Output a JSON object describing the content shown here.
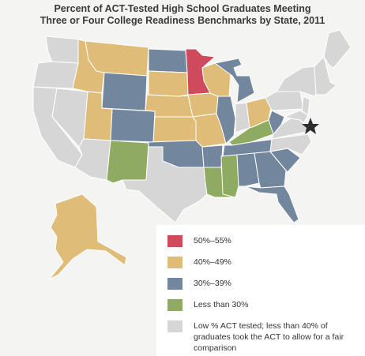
{
  "title": {
    "line1": "Percent of ACT-Tested High School Graduates Meeting",
    "line2": "Three or Four College Readiness Benchmarks by State, 2011"
  },
  "colors": {
    "c50_55": "#cf4a5a",
    "c40_49": "#dfbd79",
    "c30_39": "#72879d",
    "under30": "#8faa61",
    "low": "#d6d6d6",
    "border": "#ffffff"
  },
  "legend": [
    {
      "key": "c50_55",
      "label": "50%–55%"
    },
    {
      "key": "c40_49",
      "label": "40%–49%"
    },
    {
      "key": "c30_39",
      "label": "30%–39%"
    },
    {
      "key": "under30",
      "label": "Less than 30%"
    },
    {
      "key": "low",
      "label": "Low % ACT tested; less than 40% of graduates took the ACT to allow for a fair comparison"
    }
  ],
  "marker": "star-icon",
  "states": {
    "MN": "c50_55",
    "MT": "c40_49",
    "ID": "c40_49",
    "UT": "c40_49",
    "NE": "c40_49",
    "SD": "c40_49",
    "IA": "c40_49",
    "WI": "c40_49",
    "KS": "c40_49",
    "MO": "c40_49",
    "OH": "c40_49",
    "AK": "c40_49",
    "ND": "c30_39",
    "WY": "c30_39",
    "CO": "c30_39",
    "OK": "c30_39",
    "AR": "c30_39",
    "IL": "c30_39",
    "MI": "c30_39",
    "AL": "c30_39",
    "GA": "c30_39",
    "SC": "c30_39",
    "FL": "c30_39",
    "WV": "c30_39",
    "TN": "c30_39",
    "NM": "under30",
    "KY": "under30",
    "MS": "under30",
    "LA": "under30",
    "WA": "low",
    "OR": "low",
    "CA": "low",
    "NV": "low",
    "AZ": "low",
    "TX": "low",
    "IN": "low",
    "PA": "low",
    "NY": "low",
    "VA": "low",
    "NC": "low",
    "ME": "low",
    "NE_states": "low",
    "NJ": "low",
    "HI": "low"
  }
}
